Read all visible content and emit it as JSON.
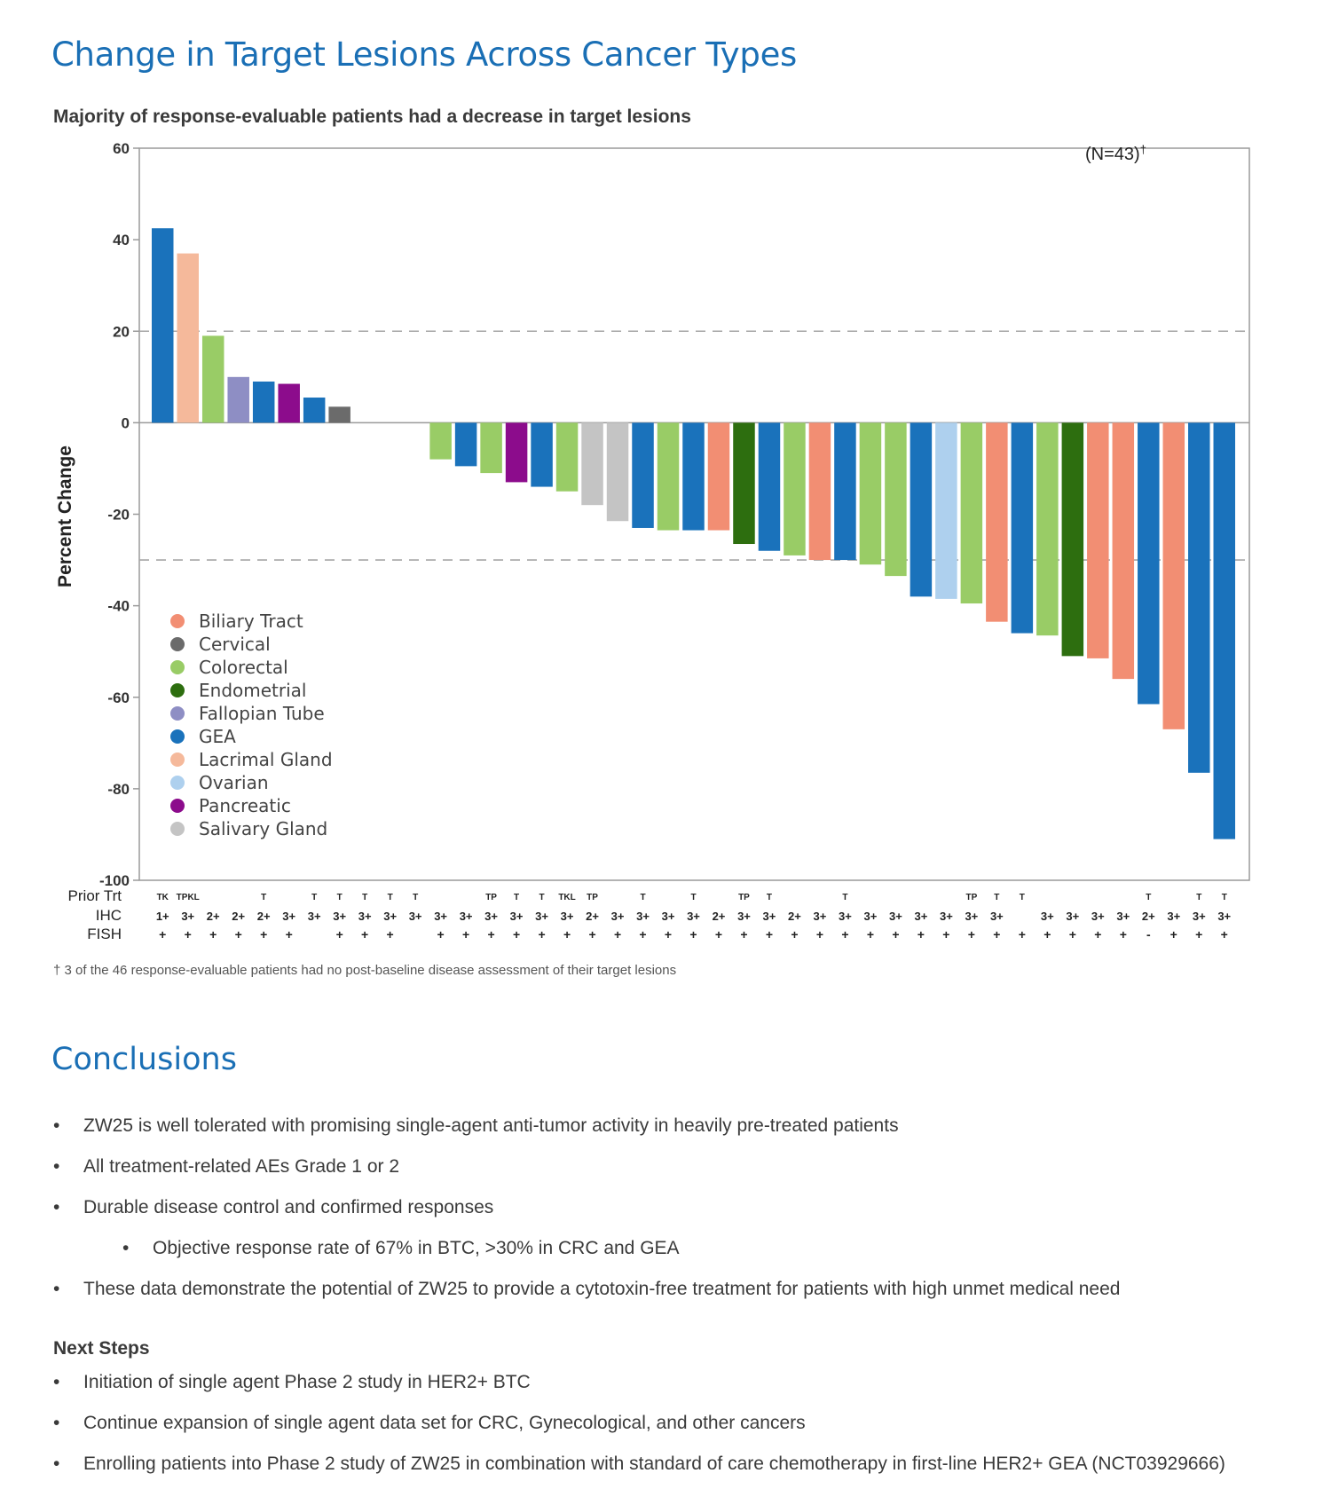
{
  "title": "Change in Target Lesions Across Cancer Types",
  "subtitle": "Majority of response-evaluable patients had a decrease in target lesions",
  "footnote": "† 3 of the 46 response-evaluable patients had no post-baseline disease assessment of their target lesions",
  "conclusions": {
    "heading": "Conclusions",
    "items": [
      {
        "text": "ZW25 is well tolerated with promising single-agent anti-tumor activity in heavily pre-treated patients",
        "level": 1
      },
      {
        "text": "All treatment-related AEs Grade 1 or 2",
        "level": 1
      },
      {
        "text": "Durable disease control and confirmed responses",
        "level": 1
      },
      {
        "text": "Objective response rate of 67% in BTC, >30% in CRC and GEA",
        "level": 2
      },
      {
        "text": "These data demonstrate the potential of ZW25 to provide a cytotoxin-free treatment for patients with high unmet medical need",
        "level": 1
      }
    ]
  },
  "next_steps": {
    "heading": "Next Steps",
    "items": [
      {
        "text": "Initiation of single agent Phase 2 study in HER2+ BTC"
      },
      {
        "text": "Continue expansion of single agent data set for CRC, Gynecological, and other cancers"
      },
      {
        "text": "Enrolling patients into Phase 2 study of ZW25 in combination with standard of care chemotherapy in first-line HER2+ GEA (NCT03929666)"
      }
    ]
  },
  "chart_data": {
    "type": "bar",
    "ylabel": "Percent Change",
    "n_label": "(N=43)",
    "n_label_sup": "†",
    "ylim": [
      -100,
      60
    ],
    "yticks": [
      60,
      40,
      20,
      0,
      -20,
      -40,
      -60,
      -80,
      -100
    ],
    "reference_lines": [
      20,
      -30
    ],
    "legend_position": "bottom-left",
    "colors": {
      "Biliary Tract": "#f28e73",
      "Cervical": "#6b6b6b",
      "Colorectal": "#99cc66",
      "Endometrial": "#2d6e0f",
      "Fallopian Tube": "#8e8ec4",
      "GEA": "#1a72bb",
      "Lacrimal Gland": "#f5b99b",
      "Ovarian": "#aed0ee",
      "Pancreatic": "#8c0c8c",
      "Salivary Gland": "#c4c4c4"
    },
    "legend": [
      "Biliary Tract",
      "Cervical",
      "Colorectal",
      "Endometrial",
      "Fallopian Tube",
      "GEA",
      "Lacrimal Gland",
      "Ovarian",
      "Pancreatic",
      "Salivary Gland"
    ],
    "row_labels": [
      "Prior Trt",
      "IHC",
      "FISH"
    ],
    "bars": [
      {
        "type": "GEA",
        "value": 42.5,
        "prior": "TK",
        "ihc": "1+",
        "fish": "+"
      },
      {
        "type": "Lacrimal Gland",
        "value": 37,
        "prior": "TPKL",
        "ihc": "3+",
        "fish": "+"
      },
      {
        "type": "Colorectal",
        "value": 19,
        "prior": "",
        "ihc": "2+",
        "fish": "+"
      },
      {
        "type": "Fallopian Tube",
        "value": 10,
        "prior": "",
        "ihc": "2+",
        "fish": "+"
      },
      {
        "type": "GEA",
        "value": 9,
        "prior": "T",
        "ihc": "2+",
        "fish": "+"
      },
      {
        "type": "Pancreatic",
        "value": 8.5,
        "prior": "",
        "ihc": "3+",
        "fish": "+"
      },
      {
        "type": "GEA",
        "value": 5.5,
        "prior": "T",
        "ihc": "3+",
        "fish": ""
      },
      {
        "type": "Cervical",
        "value": 3.5,
        "prior": "T",
        "ihc": "3+",
        "fish": "+"
      },
      {
        "type": "",
        "value": 0,
        "prior": "T",
        "ihc": "3+",
        "fish": "+"
      },
      {
        "type": "",
        "value": 0,
        "prior": "T",
        "ihc": "3+",
        "fish": "+"
      },
      {
        "type": "",
        "value": 0,
        "prior": "T",
        "ihc": "3+",
        "fish": ""
      },
      {
        "type": "Colorectal",
        "value": -8,
        "prior": "",
        "ihc": "3+",
        "fish": "+"
      },
      {
        "type": "GEA",
        "value": -9.5,
        "prior": "",
        "ihc": "3+",
        "fish": "+"
      },
      {
        "type": "Colorectal",
        "value": -11,
        "prior": "TP",
        "ihc": "3+",
        "fish": "+"
      },
      {
        "type": "Pancreatic",
        "value": -13,
        "prior": "T",
        "ihc": "3+",
        "fish": "+"
      },
      {
        "type": "GEA",
        "value": -14,
        "prior": "T",
        "ihc": "3+",
        "fish": "+"
      },
      {
        "type": "Colorectal",
        "value": -15,
        "prior": "TKL",
        "ihc": "3+",
        "fish": "+"
      },
      {
        "type": "Salivary Gland",
        "value": -18,
        "prior": "TP",
        "ihc": "2+",
        "fish": "+"
      },
      {
        "type": "Salivary Gland",
        "value": -21.5,
        "prior": "",
        "ihc": "3+",
        "fish": "+"
      },
      {
        "type": "GEA",
        "value": -23,
        "prior": "T",
        "ihc": "3+",
        "fish": "+"
      },
      {
        "type": "Colorectal",
        "value": -23.5,
        "prior": "",
        "ihc": "3+",
        "fish": "+"
      },
      {
        "type": "GEA",
        "value": -23.5,
        "prior": "T",
        "ihc": "3+",
        "fish": "+"
      },
      {
        "type": "Biliary Tract",
        "value": -23.5,
        "prior": "",
        "ihc": "2+",
        "fish": "+"
      },
      {
        "type": "Endometrial",
        "value": -26.5,
        "prior": "TP",
        "ihc": "3+",
        "fish": "+"
      },
      {
        "type": "GEA",
        "value": -28,
        "prior": "T",
        "ihc": "3+",
        "fish": "+"
      },
      {
        "type": "Colorectal",
        "value": -29,
        "prior": "",
        "ihc": "2+",
        "fish": "+"
      },
      {
        "type": "Biliary Tract",
        "value": -30,
        "prior": "",
        "ihc": "3+",
        "fish": "+"
      },
      {
        "type": "GEA",
        "value": -30,
        "prior": "T",
        "ihc": "3+",
        "fish": "+"
      },
      {
        "type": "Colorectal",
        "value": -31,
        "prior": "",
        "ihc": "3+",
        "fish": "+"
      },
      {
        "type": "Colorectal",
        "value": -33.5,
        "prior": "",
        "ihc": "3+",
        "fish": "+"
      },
      {
        "type": "GEA",
        "value": -38,
        "prior": "",
        "ihc": "3+",
        "fish": "+"
      },
      {
        "type": "Ovarian",
        "value": -38.5,
        "prior": "",
        "ihc": "3+",
        "fish": "+"
      },
      {
        "type": "Colorectal",
        "value": -39.5,
        "prior": "TP",
        "ihc": "3+",
        "fish": "+"
      },
      {
        "type": "Biliary Tract",
        "value": -43.5,
        "prior": "T",
        "ihc": "3+",
        "fish": "+"
      },
      {
        "type": "GEA",
        "value": -46,
        "prior": "T",
        "ihc": "",
        "fish": "+"
      },
      {
        "type": "Colorectal",
        "value": -46.5,
        "prior": "",
        "ihc": "3+",
        "fish": "+"
      },
      {
        "type": "Endometrial",
        "value": -51,
        "prior": "",
        "ihc": "3+",
        "fish": "+"
      },
      {
        "type": "Biliary Tract",
        "value": -51.5,
        "prior": "",
        "ihc": "3+",
        "fish": "+"
      },
      {
        "type": "Biliary Tract",
        "value": -56,
        "prior": "",
        "ihc": "3+",
        "fish": "+"
      },
      {
        "type": "GEA",
        "value": -61.5,
        "prior": "T",
        "ihc": "2+",
        "fish": "-"
      },
      {
        "type": "Biliary Tract",
        "value": -67,
        "prior": "",
        "ihc": "3+",
        "fish": "+"
      },
      {
        "type": "GEA",
        "value": -76.5,
        "prior": "T",
        "ihc": "3+",
        "fish": "+"
      },
      {
        "type": "GEA",
        "value": -91,
        "prior": "T",
        "ihc": "3+",
        "fish": "+"
      }
    ]
  }
}
